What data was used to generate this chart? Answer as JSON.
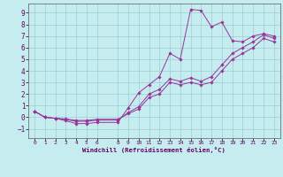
{
  "xlabel": "Windchill (Refroidissement éolien,°C)",
  "ylabel": "",
  "bg_color": "#c5edf0",
  "grid_color": "#9dcdd6",
  "line_color": "#993399",
  "spine_color": "#707070",
  "xlim": [
    -0.6,
    23.6
  ],
  "ylim": [
    -1.8,
    9.8
  ],
  "xticks": [
    0,
    1,
    2,
    3,
    4,
    5,
    6,
    8,
    9,
    10,
    11,
    12,
    13,
    14,
    15,
    16,
    17,
    18,
    19,
    20,
    21,
    22,
    23
  ],
  "yticks": [
    -1,
    0,
    1,
    2,
    3,
    4,
    5,
    6,
    7,
    8,
    9
  ],
  "series": [
    {
      "x": [
        0,
        1,
        2,
        3,
        4,
        5,
        6,
        8,
        9,
        10,
        11,
        12,
        13,
        14,
        15,
        16,
        17,
        18,
        19,
        20,
        21,
        22,
        23
      ],
      "y": [
        0.5,
        0.0,
        -0.1,
        -0.3,
        -0.55,
        -0.55,
        -0.45,
        -0.45,
        0.8,
        2.1,
        2.8,
        3.5,
        5.5,
        5.0,
        9.3,
        9.2,
        7.8,
        8.2,
        6.6,
        6.5,
        7.0,
        7.2,
        7.0
      ]
    },
    {
      "x": [
        0,
        1,
        2,
        3,
        4,
        5,
        6,
        8,
        9,
        10,
        11,
        12,
        13,
        14,
        15,
        16,
        17,
        18,
        19,
        20,
        21,
        22,
        23
      ],
      "y": [
        0.5,
        0.0,
        -0.1,
        -0.2,
        -0.35,
        -0.35,
        -0.25,
        -0.25,
        0.4,
        0.9,
        2.0,
        2.4,
        3.3,
        3.1,
        3.4,
        3.1,
        3.5,
        4.5,
        5.5,
        6.0,
        6.5,
        7.1,
        6.8
      ]
    },
    {
      "x": [
        0,
        1,
        2,
        3,
        4,
        5,
        6,
        8,
        9,
        10,
        11,
        12,
        13,
        14,
        15,
        16,
        17,
        18,
        19,
        20,
        21,
        22,
        23
      ],
      "y": [
        0.5,
        0.0,
        -0.1,
        -0.15,
        -0.28,
        -0.28,
        -0.18,
        -0.18,
        0.3,
        0.7,
        1.7,
        2.0,
        3.0,
        2.8,
        3.0,
        2.8,
        3.0,
        4.0,
        5.0,
        5.5,
        6.0,
        6.8,
        6.5
      ]
    }
  ]
}
